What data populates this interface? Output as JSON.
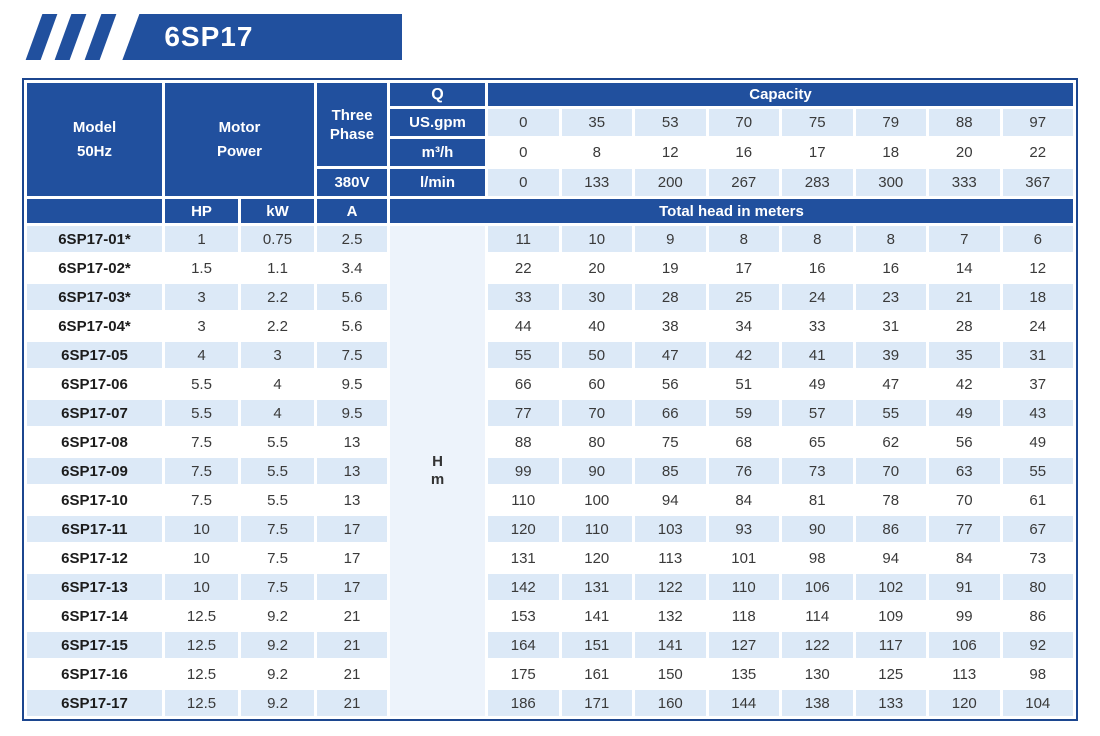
{
  "banner": {
    "title": "6SP17"
  },
  "header": {
    "model_line1": "Model",
    "model_line2": "50Hz",
    "motor_line1": "Motor",
    "motor_line2": "Power",
    "phase_line1": "Three",
    "phase_line2": "Phase",
    "voltage": "380V",
    "q": "Q",
    "capacity": "Capacity",
    "hp": "HP",
    "kw": "kW",
    "amp": "A",
    "total_head": "Total head in meters",
    "head_symbol": "H",
    "head_unit": "m",
    "unit_gpm": "US.gpm",
    "unit_m3h": "m³/h",
    "unit_lmin": "l/min",
    "flow_gpm": [
      "0",
      "35",
      "53",
      "70",
      "75",
      "79",
      "88",
      "97"
    ],
    "flow_m3h": [
      "0",
      "8",
      "12",
      "16",
      "17",
      "18",
      "20",
      "22"
    ],
    "flow_lmin": [
      "0",
      "133",
      "200",
      "267",
      "283",
      "300",
      "333",
      "367"
    ]
  },
  "rows": [
    {
      "model": "6SP17-01*",
      "hp": "1",
      "kw": "0.75",
      "amp": "2.5",
      "head": [
        "11",
        "10",
        "9",
        "8",
        "8",
        "8",
        "7",
        "6"
      ]
    },
    {
      "model": "6SP17-02*",
      "hp": "1.5",
      "kw": "1.1",
      "amp": "3.4",
      "head": [
        "22",
        "20",
        "19",
        "17",
        "16",
        "16",
        "14",
        "12"
      ]
    },
    {
      "model": "6SP17-03*",
      "hp": "3",
      "kw": "2.2",
      "amp": "5.6",
      "head": [
        "33",
        "30",
        "28",
        "25",
        "24",
        "23",
        "21",
        "18"
      ]
    },
    {
      "model": "6SP17-04*",
      "hp": "3",
      "kw": "2.2",
      "amp": "5.6",
      "head": [
        "44",
        "40",
        "38",
        "34",
        "33",
        "31",
        "28",
        "24"
      ]
    },
    {
      "model": "6SP17-05",
      "hp": "4",
      "kw": "3",
      "amp": "7.5",
      "head": [
        "55",
        "50",
        "47",
        "42",
        "41",
        "39",
        "35",
        "31"
      ]
    },
    {
      "model": "6SP17-06",
      "hp": "5.5",
      "kw": "4",
      "amp": "9.5",
      "head": [
        "66",
        "60",
        "56",
        "51",
        "49",
        "47",
        "42",
        "37"
      ]
    },
    {
      "model": "6SP17-07",
      "hp": "5.5",
      "kw": "4",
      "amp": "9.5",
      "head": [
        "77",
        "70",
        "66",
        "59",
        "57",
        "55",
        "49",
        "43"
      ]
    },
    {
      "model": "6SP17-08",
      "hp": "7.5",
      "kw": "5.5",
      "amp": "13",
      "head": [
        "88",
        "80",
        "75",
        "68",
        "65",
        "62",
        "56",
        "49"
      ]
    },
    {
      "model": "6SP17-09",
      "hp": "7.5",
      "kw": "5.5",
      "amp": "13",
      "head": [
        "99",
        "90",
        "85",
        "76",
        "73",
        "70",
        "63",
        "55"
      ]
    },
    {
      "model": "6SP17-10",
      "hp": "7.5",
      "kw": "5.5",
      "amp": "13",
      "head": [
        "110",
        "100",
        "94",
        "84",
        "81",
        "78",
        "70",
        "61"
      ]
    },
    {
      "model": "6SP17-11",
      "hp": "10",
      "kw": "7.5",
      "amp": "17",
      "head": [
        "120",
        "110",
        "103",
        "93",
        "90",
        "86",
        "77",
        "67"
      ]
    },
    {
      "model": "6SP17-12",
      "hp": "10",
      "kw": "7.5",
      "amp": "17",
      "head": [
        "131",
        "120",
        "113",
        "101",
        "98",
        "94",
        "84",
        "73"
      ]
    },
    {
      "model": "6SP17-13",
      "hp": "10",
      "kw": "7.5",
      "amp": "17",
      "head": [
        "142",
        "131",
        "122",
        "110",
        "106",
        "102",
        "91",
        "80"
      ]
    },
    {
      "model": "6SP17-14",
      "hp": "12.5",
      "kw": "9.2",
      "amp": "21",
      "head": [
        "153",
        "141",
        "132",
        "118",
        "114",
        "109",
        "99",
        "86"
      ]
    },
    {
      "model": "6SP17-15",
      "hp": "12.5",
      "kw": "9.2",
      "amp": "21",
      "head": [
        "164",
        "151",
        "141",
        "127",
        "122",
        "117",
        "106",
        "92"
      ]
    },
    {
      "model": "6SP17-16",
      "hp": "12.5",
      "kw": "9.2",
      "amp": "21",
      "head": [
        "175",
        "161",
        "150",
        "135",
        "130",
        "125",
        "113",
        "98"
      ]
    },
    {
      "model": "6SP17-17",
      "hp": "12.5",
      "kw": "9.2",
      "amp": "21",
      "head": [
        "186",
        "171",
        "160",
        "144",
        "138",
        "133",
        "120",
        "104"
      ]
    }
  ]
}
